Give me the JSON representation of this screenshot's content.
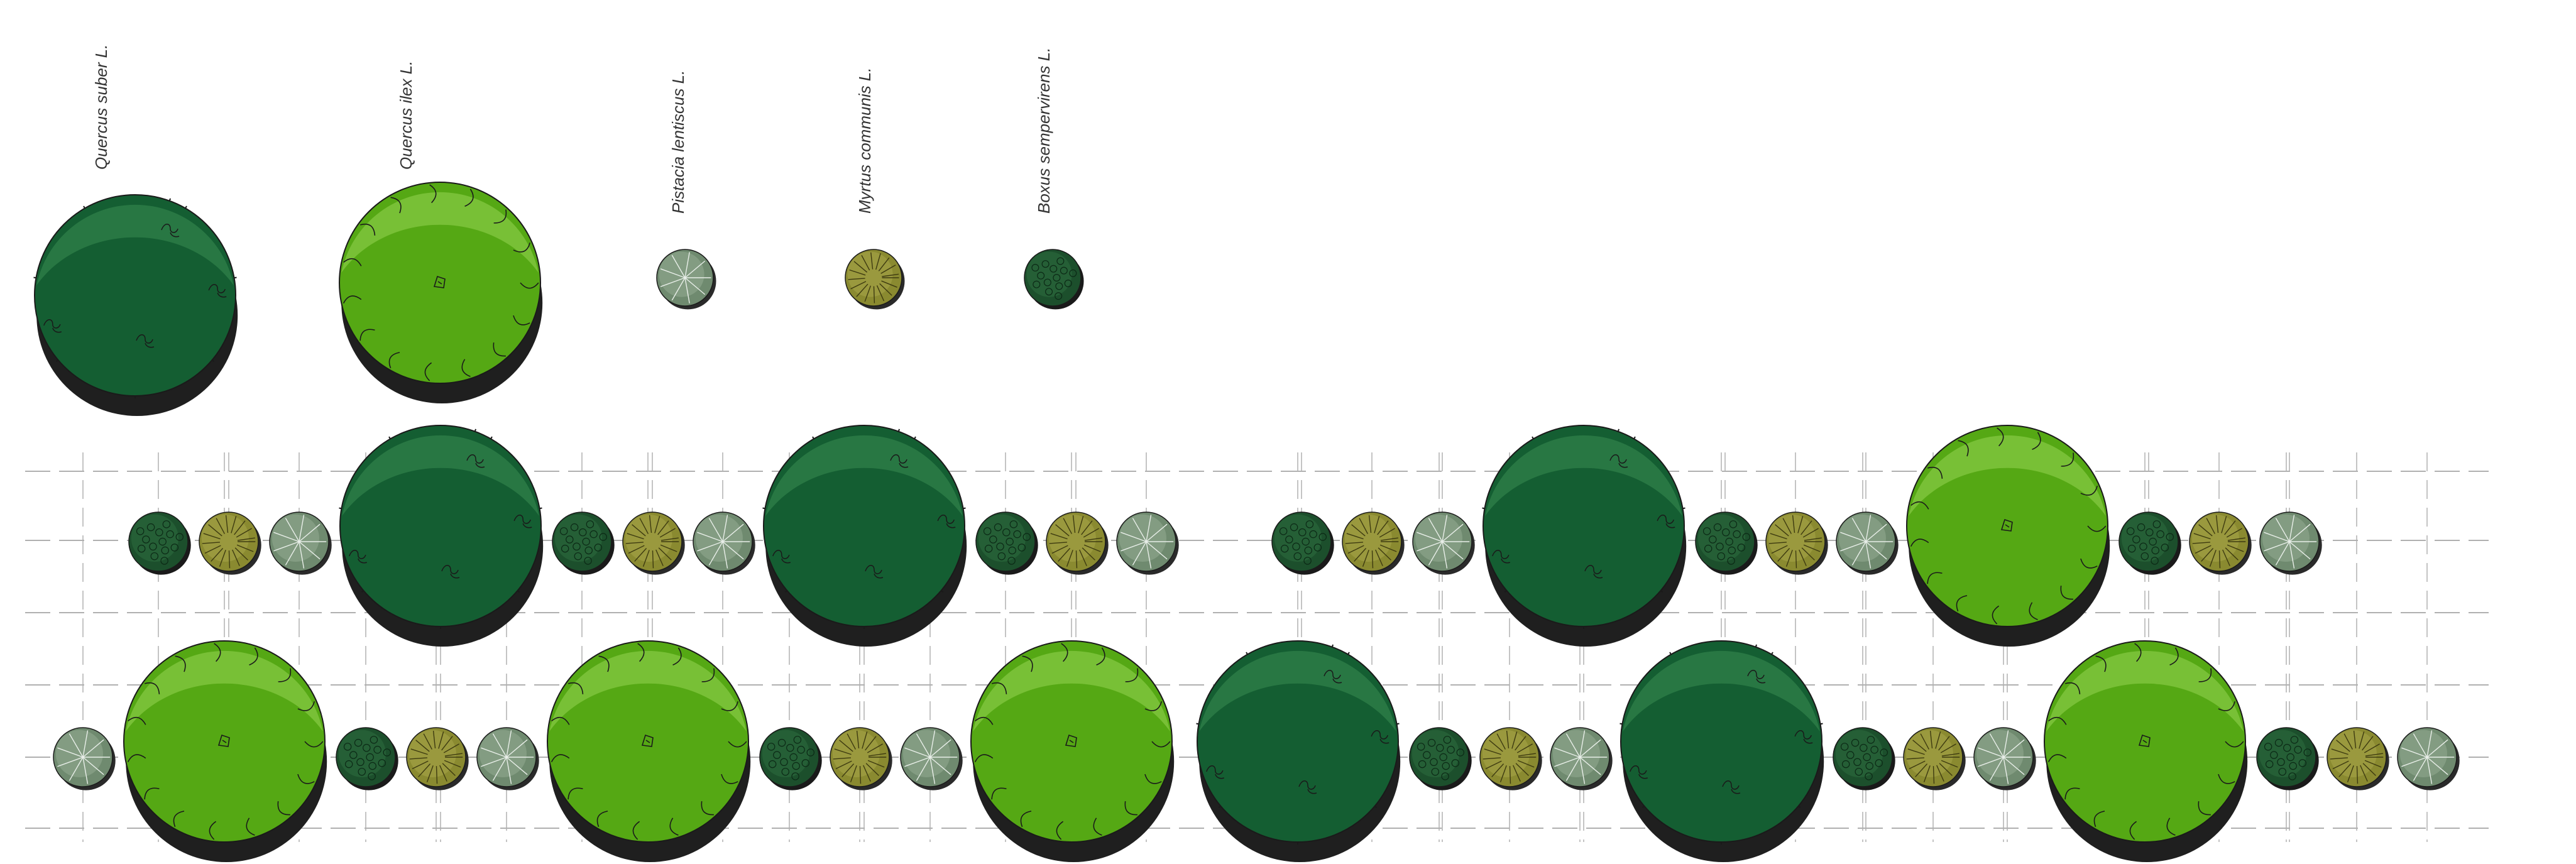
{
  "species": [
    {
      "key": "qs",
      "label": "Quercus suber L.",
      "kind": "large",
      "fill": "#145e32",
      "light": "#2a7a45",
      "shadow": "#1f1f1f"
    },
    {
      "key": "qi",
      "label": "Quercus ilex L.",
      "kind": "large",
      "fill": "#55a814",
      "light": "#7cc23a",
      "shadow": "#1f1f1f"
    },
    {
      "key": "pl",
      "label": "Pistacia lentiscus L.",
      "kind": "small",
      "fill": "#6f8a6f",
      "light": "#94ab92",
      "shadow": "#2a2a2a"
    },
    {
      "key": "mc",
      "label": "Myrtus communis L.",
      "kind": "small",
      "fill": "#8a8a30",
      "light": "#a8a54a",
      "shadow": "#2a2a2a"
    },
    {
      "key": "bs",
      "label": "Boxus sempervirens L.",
      "kind": "small",
      "fill": "#1c4f2c",
      "light": "#2e6e3f",
      "shadow": "#1a1a1a"
    }
  ],
  "planting_rows": [
    {
      "row": "upper",
      "sequence": [
        "bs",
        "mc",
        "pl",
        "qs",
        "bs",
        "mc",
        "pl",
        "qs",
        "bs",
        "mc",
        "pl",
        "gap",
        "bs",
        "mc",
        "pl",
        "qs",
        "bs",
        "mc",
        "pl",
        "qi",
        "bs",
        "mc",
        "pl"
      ]
    },
    {
      "row": "lower",
      "sequence": [
        "pl",
        "qi",
        "bs",
        "mc",
        "pl",
        "qi",
        "bs",
        "mc",
        "pl",
        "qi",
        "gap",
        "qs",
        "bs",
        "mc",
        "pl",
        "qs",
        "bs",
        "mc",
        "pl",
        "qi",
        "bs",
        "mc",
        "pl"
      ]
    }
  ],
  "colors": {
    "grid": "#b0b0b0",
    "outline": "#1a1a1a"
  }
}
